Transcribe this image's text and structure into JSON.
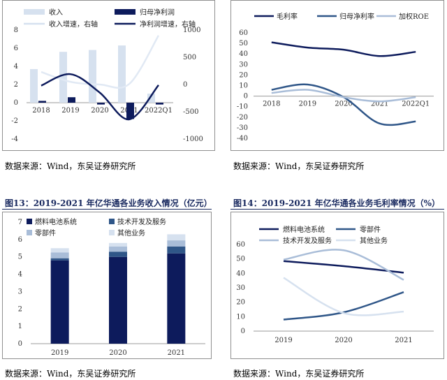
{
  "figure13": {
    "title": "图13：2019-2021 年亿华通各业务收入情况（亿元）"
  },
  "figure14": {
    "title": "图14：2019-2021 年亿华通各业务毛利率情况（%）"
  },
  "sources": [
    "数据来源：Wind，东吴证券研究所",
    "数据来源：Wind，东吴证券研究所",
    "数据来源：Wind，东吴证券研究所",
    "数据来源：Wind，东吴证券研究所"
  ],
  "colors": {
    "navy": "#0d1b5c",
    "steel": "#2f5688",
    "light": "#a9bdd8",
    "pale": "#d6e1ef",
    "grid": "#bfbfbf"
  },
  "chart_data": [
    {
      "type": "bar",
      "categories": [
        "2018",
        "2019",
        "2020",
        "2021",
        "2022Q1"
      ],
      "ylim": [
        -4,
        8
      ],
      "y2lim": [
        -1000,
        1000
      ],
      "series": [
        {
          "name": "收入",
          "kind": "bar",
          "axis": "left",
          "values": [
            3.7,
            5.6,
            5.8,
            6.3,
            1.0
          ]
        },
        {
          "name": "归母净利润",
          "kind": "bar",
          "axis": "left",
          "values": [
            0.2,
            0.6,
            -0.2,
            -1.8,
            -0.2
          ]
        },
        {
          "name": "收入增速，右轴",
          "kind": "line",
          "axis": "right",
          "values": [
            230,
            50,
            0,
            10,
            900
          ]
        },
        {
          "name": "净利润增速，右轴",
          "kind": "line",
          "axis": "right",
          "values": [
            -20,
            190,
            -150,
            -640,
            -10
          ]
        }
      ],
      "legend": "top"
    },
    {
      "type": "line",
      "categories": [
        "2018",
        "2019",
        "2020",
        "2021",
        "2022Q1"
      ],
      "ylim": [
        -40,
        60
      ],
      "series": [
        {
          "name": "毛利率",
          "values": [
            51,
            46,
            44,
            38,
            42
          ]
        },
        {
          "name": "归母净利率",
          "values": [
            6,
            11,
            -1,
            -26,
            -24
          ]
        },
        {
          "name": "加权ROE",
          "values": [
            3,
            6,
            -1,
            -5,
            -1
          ]
        }
      ],
      "legend": "top"
    },
    {
      "type": "bar",
      "stacked": true,
      "categories": [
        "2019",
        "2020",
        "2021"
      ],
      "ylim": [
        0,
        7
      ],
      "series": [
        {
          "name": "燃料电池系统",
          "values": [
            4.8,
            5.0,
            5.2
          ]
        },
        {
          "name": "技术开发及服务",
          "values": [
            0.12,
            0.3,
            0.4
          ]
        },
        {
          "name": "零部件",
          "values": [
            0.33,
            0.3,
            0.35
          ]
        },
        {
          "name": "其他业务",
          "values": [
            0.25,
            0.2,
            0.35
          ]
        }
      ],
      "legend": "top"
    },
    {
      "type": "line",
      "categories": [
        "2019",
        "2020",
        "2021"
      ],
      "ylim": [
        0,
        60
      ],
      "series": [
        {
          "name": "燃料电池系统",
          "values": [
            48.5,
            45,
            40.5
          ]
        },
        {
          "name": "零部件",
          "values": [
            8,
            13,
            27
          ]
        },
        {
          "name": "技术开发及服务",
          "values": [
            49.5,
            56,
            35.5
          ]
        },
        {
          "name": "其他业务",
          "values": [
            37,
            12.5,
            13.5
          ]
        }
      ],
      "legend": "top"
    }
  ]
}
